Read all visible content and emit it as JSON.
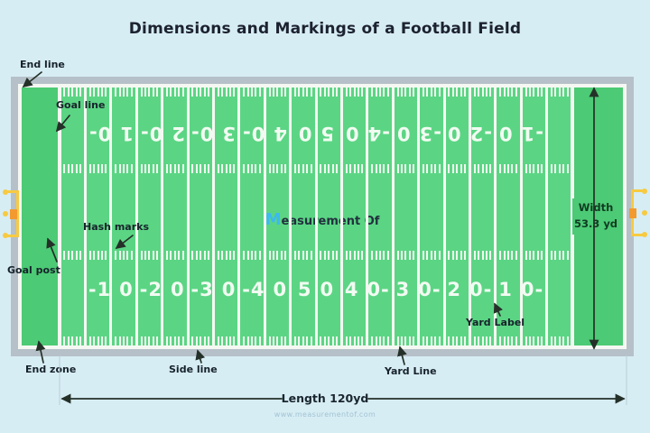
{
  "title": "Dimensions and Markings of a Football Field",
  "watermark": {
    "initial": "M",
    "rest": "easurement Of"
  },
  "url": "www.measurementof.com",
  "annotations": {
    "end_line": "End line",
    "goal_line": "Goal line",
    "hash_marks": "Hash marks",
    "goal_post": "Goal post",
    "end_zone": "End zone",
    "side_line": "Side line",
    "yard_line": "Yard Line",
    "yard_label": "Yard Label"
  },
  "dimensions": {
    "width_label": "Width",
    "width_value": "53.3 yd",
    "length_label": "Length 120yd"
  },
  "field": {
    "segments_between_goal_lines": 20,
    "yards_per_segment": 5,
    "hash_ticks_per_segment": 5,
    "yard_numbers": {
      "line_positions_in_segments": [
        2,
        4,
        6,
        8,
        10,
        12,
        14,
        16,
        18
      ],
      "bottom_row": [
        [
          "-1",
          "0"
        ],
        [
          "-2",
          "0"
        ],
        [
          "-3",
          "0"
        ],
        [
          "-4",
          "0"
        ],
        [
          "5",
          "0"
        ],
        [
          "4",
          "0-"
        ],
        [
          "3",
          "0-"
        ],
        [
          "2",
          "0-"
        ],
        [
          "1",
          "0-"
        ]
      ],
      "top_row_rotated_180": [
        [
          "1",
          "0-"
        ],
        [
          "2",
          "0-"
        ],
        [
          "3",
          "0-"
        ],
        [
          "4",
          "0-"
        ],
        [
          "5",
          "0"
        ],
        [
          "-4",
          "0"
        ],
        [
          "-3",
          "0"
        ],
        [
          "-2",
          "0"
        ],
        [
          "-1",
          "0"
        ]
      ]
    },
    "colors": {
      "background": "#d7edf4",
      "field_green": "#5bd584",
      "end_zone_green": "#4cca75",
      "line_white": "#f5f8f2",
      "frame_gray": "#b6c0c8",
      "goal_post_yellow": "#f7ca41",
      "goal_post_pad_orange": "#f29a30",
      "watermark_blue": "#3cb9ee",
      "annotation_dark": "#17222b"
    }
  }
}
